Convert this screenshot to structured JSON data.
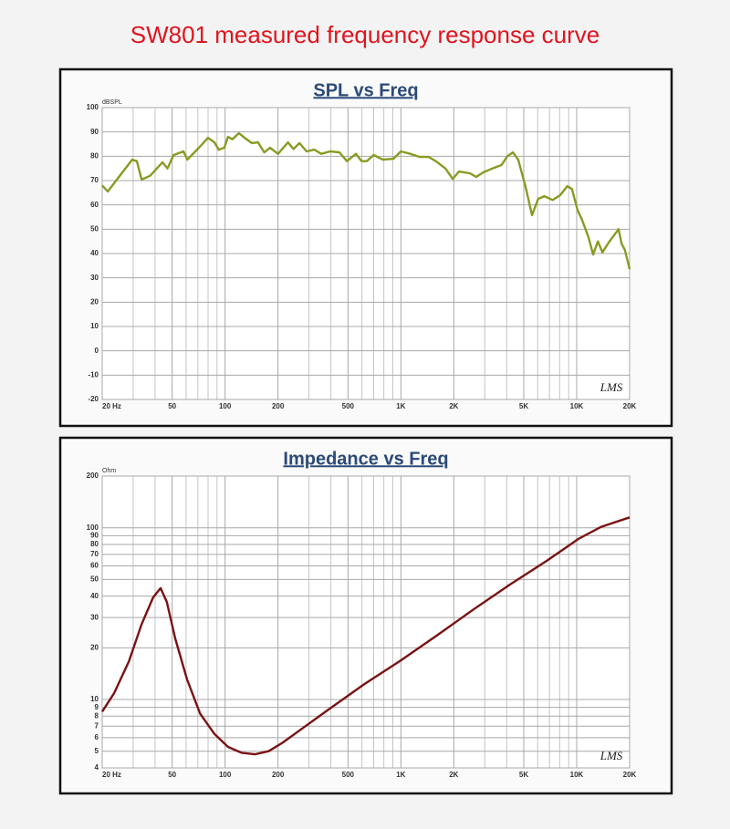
{
  "title": "SW801 measured frequency response curve",
  "chart_data": [
    {
      "type": "line",
      "title": "SPL vs Freq",
      "y_label": "dBSPL",
      "annotation": "LMS",
      "x_scale": "log",
      "y_scale": "linear",
      "grid": true,
      "minor_grid": true,
      "color": "#8a9a22",
      "xlim": [
        20,
        20000
      ],
      "ylim": [
        -20,
        100
      ],
      "xticks": [
        {
          "value": 20,
          "label": "20 Hz"
        },
        50,
        100,
        200,
        500,
        {
          "value": 1000,
          "label": "1K"
        },
        {
          "value": 2000,
          "label": "2K"
        },
        {
          "value": 5000,
          "label": "5K"
        },
        {
          "value": 10000,
          "label": "10K"
        },
        {
          "value": 20000,
          "label": "20K"
        }
      ],
      "yticks": [
        -20,
        -10,
        0,
        10,
        20,
        30,
        40,
        50,
        60,
        70,
        80,
        90,
        100
      ],
      "x": [
        20,
        21.5,
        29.6,
        31.5,
        33.5,
        37.5,
        44,
        47,
        51,
        58,
        61,
        71,
        80,
        87,
        92,
        99,
        104,
        110,
        120,
        129,
        142,
        154,
        167,
        180,
        200,
        228,
        245,
        265,
        291,
        322,
        352,
        396,
        447,
        493,
        555,
        597,
        640,
        700,
        790,
        908,
        1000,
        1130,
        1280,
        1440,
        1580,
        1790,
        1970,
        2140,
        2470,
        2680,
        2950,
        3320,
        3740,
        4030,
        4330,
        4650,
        5120,
        5570,
        6040,
        6550,
        7300,
        8050,
        8840,
        9400,
        10100,
        10700,
        11670,
        12400,
        13200,
        14000,
        15200,
        16500,
        17300,
        18000,
        18800,
        20000
      ],
      "values": [
        68,
        65.5,
        78.6,
        78,
        70.4,
        72,
        77.5,
        75,
        80.5,
        82,
        78.6,
        83.5,
        87.6,
        85.7,
        82.7,
        83.5,
        88,
        87,
        89.5,
        87.6,
        85.4,
        85.7,
        81.6,
        83.5,
        81,
        85.7,
        83,
        85.4,
        82,
        82.7,
        81,
        82,
        81.6,
        78,
        81,
        78,
        78,
        80.5,
        78.6,
        79,
        82,
        81,
        79.7,
        79.7,
        78,
        75,
        70.7,
        73.7,
        73,
        71.5,
        73.4,
        75,
        76.4,
        80,
        81.6,
        78.6,
        67.4,
        55.8,
        62.5,
        63.6,
        62,
        64,
        67.7,
        66.5,
        58,
        54,
        46.7,
        39.6,
        45,
        40.5,
        44.5,
        48,
        50,
        44,
        41.5,
        33.6
      ]
    },
    {
      "type": "line",
      "title": "Impedance vs Freq",
      "y_label": "Ohm",
      "annotation": "LMS",
      "x_scale": "log",
      "y_scale": "log",
      "grid": true,
      "minor_grid": true,
      "color": "#7a1212",
      "xlim": [
        20,
        20000
      ],
      "ylim": [
        4,
        200
      ],
      "xticks": [
        {
          "value": 20,
          "label": "20 Hz"
        },
        50,
        100,
        200,
        500,
        {
          "value": 1000,
          "label": "1K"
        },
        {
          "value": 2000,
          "label": "2K"
        },
        {
          "value": 5000,
          "label": "5K"
        },
        {
          "value": 10000,
          "label": "10K"
        },
        {
          "value": 20000,
          "label": "20K"
        }
      ],
      "yticks": [
        4,
        5,
        6,
        7,
        8,
        9,
        10,
        20,
        30,
        40,
        50,
        60,
        70,
        80,
        90,
        100,
        200
      ],
      "x": [
        20,
        23.4,
        28.4,
        33.4,
        39,
        43,
        46.6,
        52,
        60.8,
        72,
        87,
        104,
        124,
        148,
        177,
        212,
        270,
        385,
        620,
        1000,
        1610,
        2590,
        4170,
        6730,
        9400,
        10200,
        13700,
        20000
      ],
      "values": [
        8.5,
        10.9,
        16.7,
        27.2,
        39.4,
        44.5,
        37,
        22.7,
        13.1,
        8.3,
        6.3,
        5.3,
        4.9,
        4.8,
        5.0,
        5.6,
        6.7,
        8.7,
        12.3,
        16.9,
        23.7,
        33.5,
        46.7,
        64.1,
        81,
        86,
        101,
        115
      ]
    }
  ]
}
